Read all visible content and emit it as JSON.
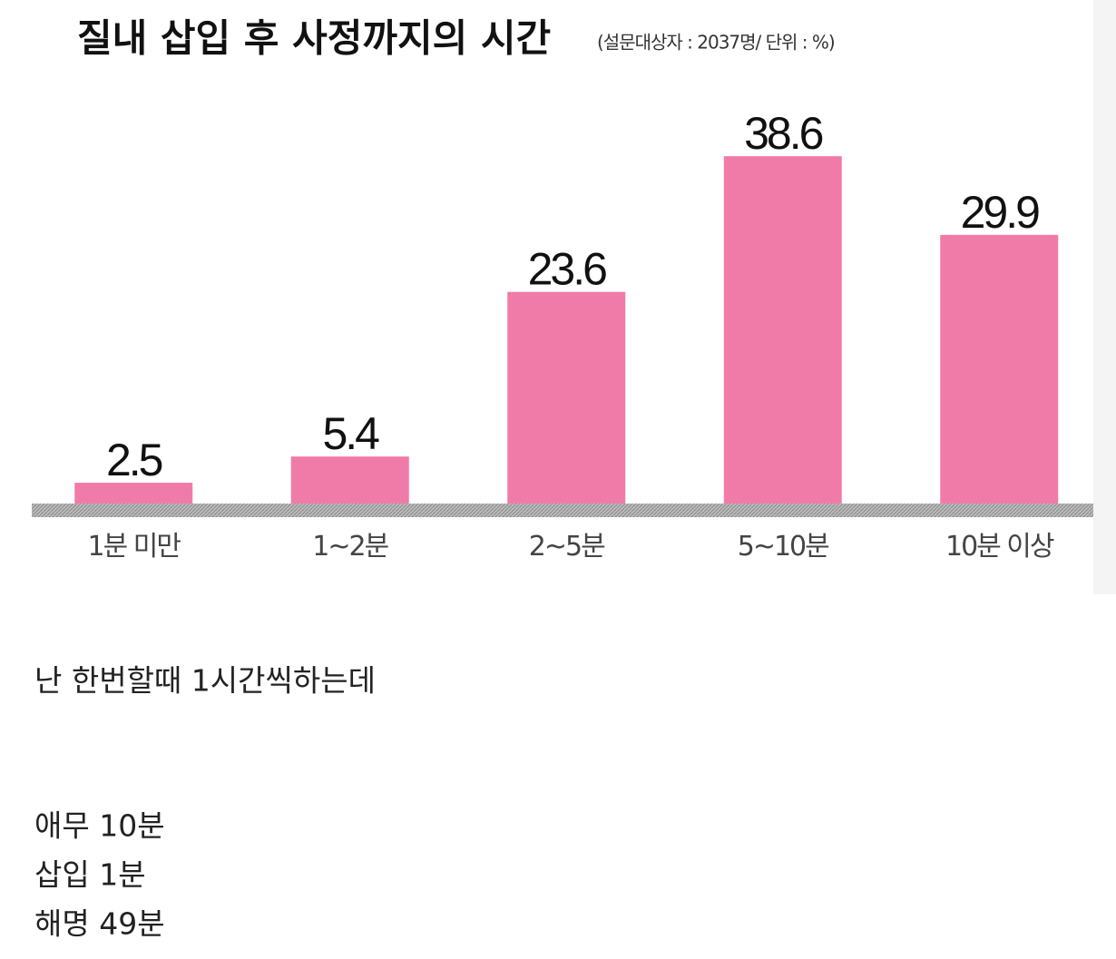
{
  "chart_data": {
    "type": "bar",
    "title": "질내 삽입 후 사정까지의 시간",
    "subtitle": "(설문대상자 : 2037명/ 단위 : %)",
    "categories": [
      "1분 미만",
      "1~2분",
      "2~5분",
      "5~10분",
      "10분 이상"
    ],
    "values": [
      2.5,
      5.4,
      23.6,
      38.6,
      29.9
    ],
    "color": "#f07ba8"
  },
  "post": {
    "lines": [
      "난 한번할때 1시간씩하는데",
      "애무 10분",
      "삽입 1분",
      "해명 49분"
    ]
  }
}
